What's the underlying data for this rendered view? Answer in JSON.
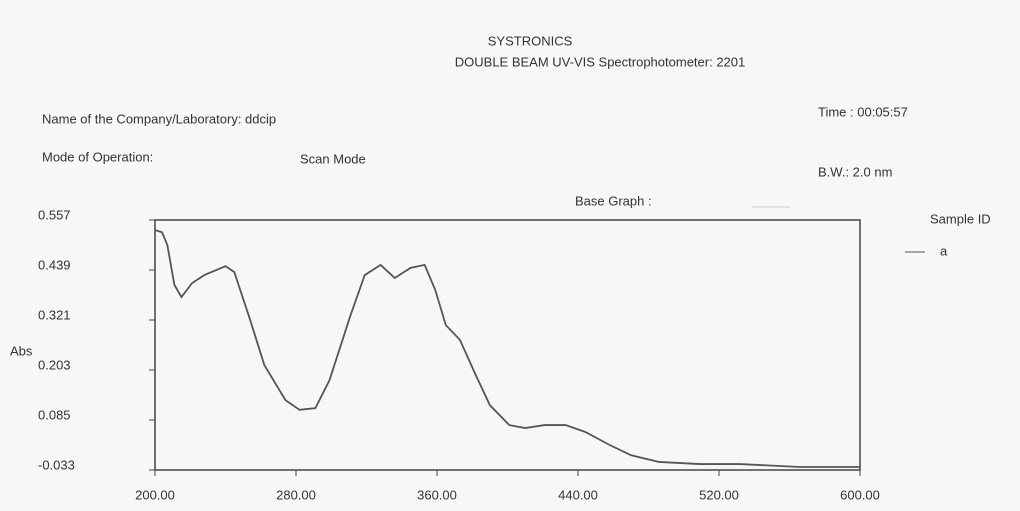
{
  "info": {
    "company": "Name of the Company/Laboratory: ddcip",
    "time": "Time : 00:05:57",
    "mode_label": "Mode of Operation:",
    "mode": "Scan Mode",
    "bw": "B.W.: 2.0 nm",
    "base_graph": "Base Graph :",
    "sample_id": "Sample ID"
  },
  "chart_data": {
    "type": "line",
    "title": "SYSTRONICS",
    "subtitle": "DOUBLE BEAM UV-VIS Spectrophotometer: 2201",
    "y_label": "Abs",
    "x": [
      200,
      204,
      207,
      211,
      215,
      221,
      228,
      240,
      245,
      254,
      262,
      274,
      282,
      291,
      299,
      311,
      319,
      328,
      336,
      345,
      353,
      359,
      365,
      373,
      382,
      390,
      401,
      410,
      421,
      433,
      444,
      458,
      470,
      486,
      509,
      532,
      566,
      600
    ],
    "series": [
      {
        "name": "a",
        "color": "#555555",
        "values": [
          0.533,
          0.528,
          0.498,
          0.404,
          0.375,
          0.408,
          0.427,
          0.448,
          0.434,
          0.321,
          0.215,
          0.132,
          0.109,
          0.113,
          0.179,
          0.333,
          0.427,
          0.451,
          0.42,
          0.444,
          0.451,
          0.392,
          0.309,
          0.274,
          0.191,
          0.12,
          0.073,
          0.066,
          0.073,
          0.073,
          0.057,
          0.026,
          0.002,
          -0.014,
          -0.019,
          -0.019,
          -0.026,
          -0.026
        ]
      }
    ],
    "xlim": [
      200,
      600
    ],
    "xticks": [
      {
        "value": 200,
        "label": "200.00"
      },
      {
        "value": 280,
        "label": "280.00"
      },
      {
        "value": 360,
        "label": "360.00"
      },
      {
        "value": 440,
        "label": "440.00"
      },
      {
        "value": 520,
        "label": "520.00"
      },
      {
        "value": 600,
        "label": "600.00"
      }
    ],
    "ylim": [
      -0.033,
      0.557
    ],
    "yticks": [
      -0.033,
      0.085,
      0.203,
      0.321,
      0.439,
      0.557
    ],
    "grid": false
  }
}
